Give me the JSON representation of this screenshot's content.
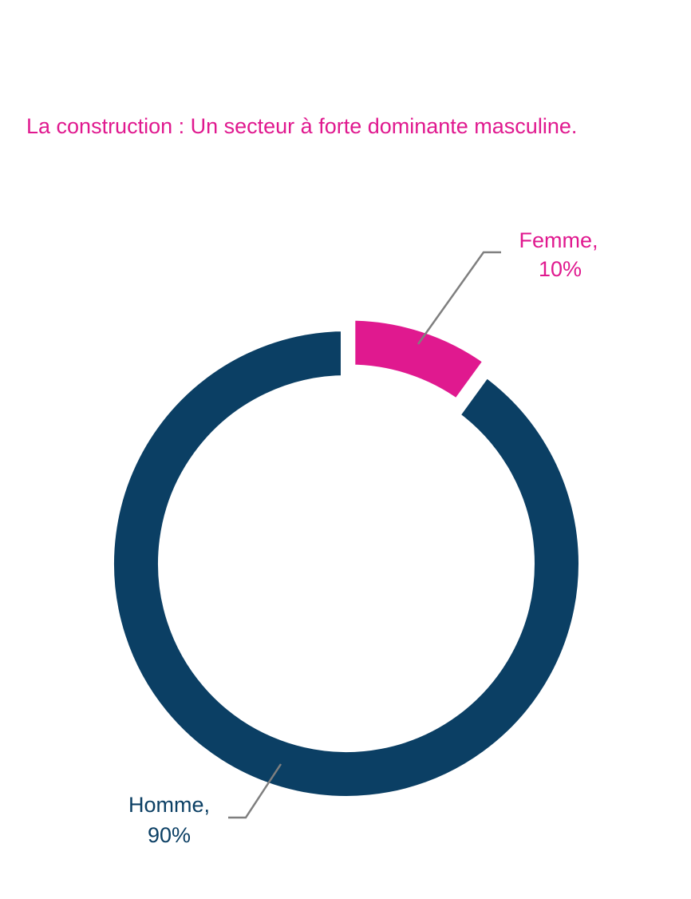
{
  "chart_data": {
    "type": "pie",
    "title": "La construction : Un secteur à forte dominante masculine.",
    "slices": [
      {
        "label_line1": "Femme,",
        "label_line2": "10%",
        "name": "Femme",
        "value": 10,
        "color": "#e0198f"
      },
      {
        "label_line1": "Homme,",
        "label_line2": "90%",
        "name": "Homme",
        "value": 90,
        "color": "#0b3f64"
      }
    ],
    "legend": "none",
    "leader_line_color": "#7f7f7f"
  }
}
